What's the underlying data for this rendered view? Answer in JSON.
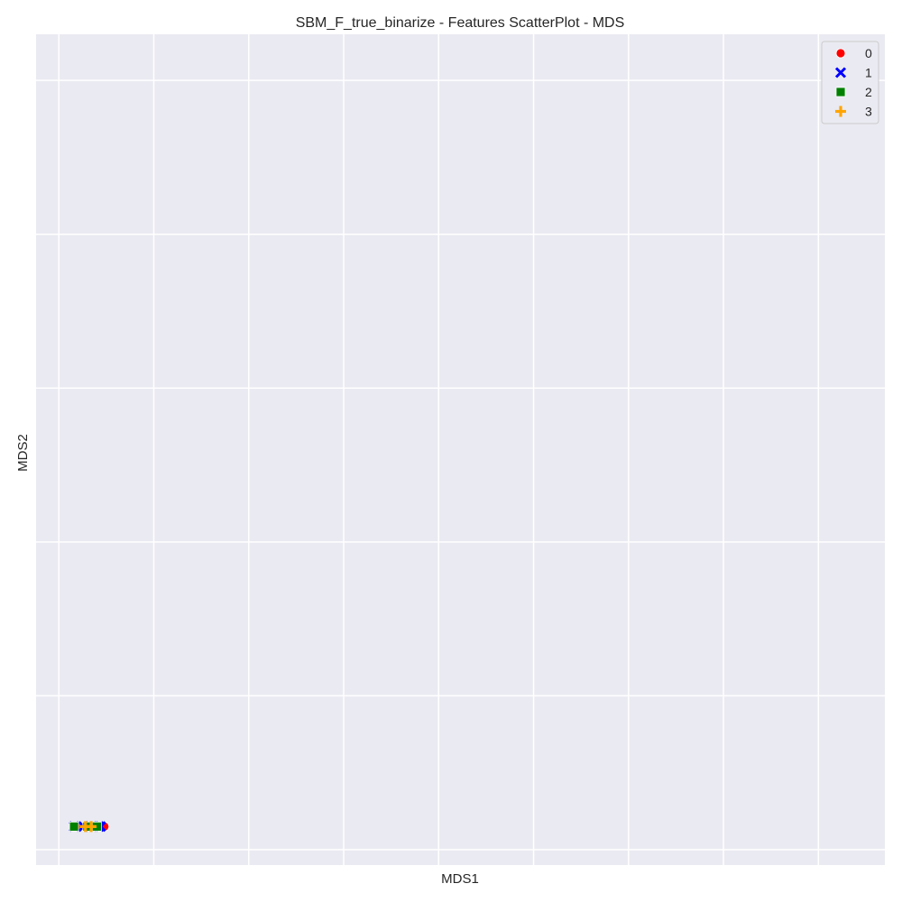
{
  "chart_data": {
    "type": "scatter",
    "title": "SBM_F_true_binarize - Features ScatterPlot - MDS",
    "xlabel": "MDS1",
    "ylabel": "MDS2",
    "xticks": [
      "",
      "",
      "",
      "",
      "",
      "",
      "",
      "",
      ""
    ],
    "yticks": [
      "",
      "",
      "",
      "",
      "",
      ""
    ],
    "xlim": [
      -0.12,
      4.35
    ],
    "ylim": [
      -0.1,
      5.3
    ],
    "grid": true,
    "legend": {
      "placement": "top-right"
    },
    "series": [
      {
        "name": "0",
        "marker": "circle",
        "color": "#ff0000",
        "points": [
          {
            "x": 0.09,
            "y": 0.15
          },
          {
            "x": 0.16,
            "y": 0.15
          },
          {
            "x": 0.24,
            "y": 0.15
          }
        ]
      },
      {
        "name": "1",
        "marker": "x",
        "color": "#0000ff",
        "points": [
          {
            "x": 0.08,
            "y": 0.15
          },
          {
            "x": 0.13,
            "y": 0.15
          },
          {
            "x": 0.21,
            "y": 0.15
          },
          {
            "x": 0.22,
            "y": 0.15
          }
        ]
      },
      {
        "name": "2",
        "marker": "square",
        "color": "#008000",
        "points": [
          {
            "x": 0.08,
            "y": 0.15
          },
          {
            "x": 0.15,
            "y": 0.15
          },
          {
            "x": 0.2,
            "y": 0.15
          }
        ]
      },
      {
        "name": "3",
        "marker": "plus",
        "color": "#ffa500",
        "points": [
          {
            "x": 0.14,
            "y": 0.15
          },
          {
            "x": 0.17,
            "y": 0.15
          },
          {
            "x": 4.12,
            "y": 5.04
          }
        ]
      }
    ]
  }
}
